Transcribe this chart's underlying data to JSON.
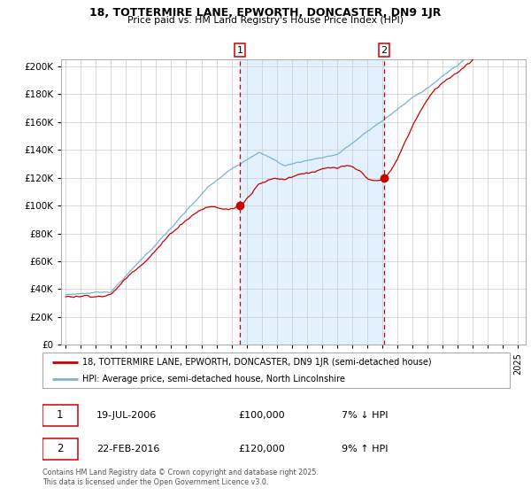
{
  "title1": "18, TOTTERMIRE LANE, EPWORTH, DONCASTER, DN9 1JR",
  "title2": "Price paid vs. HM Land Registry's House Price Index (HPI)",
  "legend_line1": "18, TOTTERMIRE LANE, EPWORTH, DONCASTER, DN9 1JR (semi-detached house)",
  "legend_line2": "HPI: Average price, semi-detached house, North Lincolnshire",
  "annotation1_date": "19-JUL-2006",
  "annotation1_price": "£100,000",
  "annotation1_hpi": "7% ↓ HPI",
  "annotation2_date": "22-FEB-2016",
  "annotation2_price": "£120,000",
  "annotation2_hpi": "9% ↑ HPI",
  "footnote": "Contains HM Land Registry data © Crown copyright and database right 2025.\nThis data is licensed under the Open Government Licence v3.0.",
  "vline1_x": 2006.55,
  "vline2_x": 2016.12,
  "sale1_x": 2006.55,
  "sale1_y": 100000,
  "sale2_x": 2016.12,
  "sale2_y": 120000,
  "hpi_color": "#7ab3d4",
  "price_color": "#cc0000",
  "vline_color": "#cc0000",
  "bg_shaded_color": "#ddeeff",
  "ylim": [
    0,
    205000
  ],
  "xlim_start": 1994.7,
  "xlim_end": 2025.5,
  "ytick_step": 20000,
  "xticks": [
    1995,
    1996,
    1997,
    1998,
    1999,
    2000,
    2001,
    2002,
    2003,
    2004,
    2005,
    2006,
    2007,
    2008,
    2009,
    2010,
    2011,
    2012,
    2013,
    2014,
    2015,
    2016,
    2017,
    2018,
    2019,
    2020,
    2021,
    2022,
    2023,
    2024,
    2025
  ]
}
